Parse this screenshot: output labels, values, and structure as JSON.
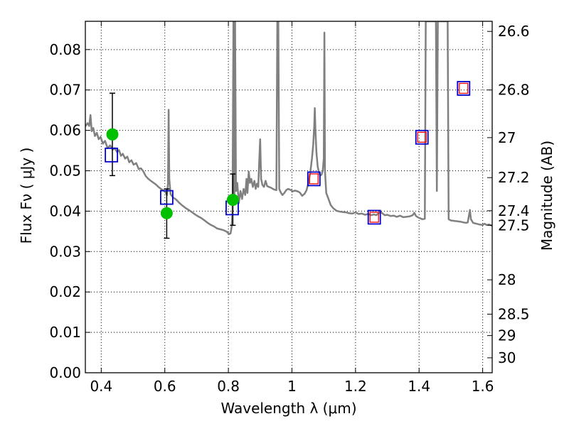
{
  "chart_data": {
    "type": "line",
    "xlabel": "Wavelength  λ (μm)",
    "ylabel": "Flux  Fν  ( μJy )",
    "y2label": "Magnitude (AB)",
    "xlim": [
      0.35,
      1.63
    ],
    "ylim": [
      0.0,
      0.087
    ],
    "grid": true,
    "legend": "none",
    "x_ticks": [
      {
        "value": 0.4,
        "label": "0.4"
      },
      {
        "value": 0.6,
        "label": "0.6"
      },
      {
        "value": 0.8,
        "label": "0.8"
      },
      {
        "value": 1.0,
        "label": "1"
      },
      {
        "value": 1.2,
        "label": "1.2"
      },
      {
        "value": 1.4,
        "label": "1.4"
      },
      {
        "value": 1.6,
        "label": "1.6"
      }
    ],
    "y_ticks": [
      {
        "value": 0.0,
        "label": "0.00"
      },
      {
        "value": 0.01,
        "label": "0.01"
      },
      {
        "value": 0.02,
        "label": "0.02"
      },
      {
        "value": 0.03,
        "label": "0.03"
      },
      {
        "value": 0.04,
        "label": "0.04"
      },
      {
        "value": 0.05,
        "label": "0.05"
      },
      {
        "value": 0.06,
        "label": "0.06"
      },
      {
        "value": 0.07,
        "label": "0.07"
      },
      {
        "value": 0.08,
        "label": "0.08"
      }
    ],
    "y2_ticks": [
      {
        "flux": 0.0845,
        "label": "26.6"
      },
      {
        "flux": 0.07,
        "label": "26.8"
      },
      {
        "flux": 0.0582,
        "label": "27"
      },
      {
        "flux": 0.0483,
        "label": "27.2"
      },
      {
        "flux": 0.0401,
        "label": "27.4"
      },
      {
        "flux": 0.0365,
        "label": "27.5"
      },
      {
        "flux": 0.023,
        "label": "28"
      },
      {
        "flux": 0.0145,
        "label": "28.5"
      },
      {
        "flux": 0.0092,
        "label": "29"
      },
      {
        "flux": 0.0037,
        "label": "30"
      }
    ],
    "series": [
      {
        "kind": "sed-model",
        "color": "#808080",
        "points": [
          [
            0.35,
            0.061
          ],
          [
            0.357,
            0.0618
          ],
          [
            0.362,
            0.0611
          ],
          [
            0.366,
            0.0638
          ],
          [
            0.37,
            0.0598
          ],
          [
            0.375,
            0.0606
          ],
          [
            0.38,
            0.0586
          ],
          [
            0.386,
            0.0594
          ],
          [
            0.392,
            0.0578
          ],
          [
            0.398,
            0.0584
          ],
          [
            0.405,
            0.0567
          ],
          [
            0.412,
            0.0574
          ],
          [
            0.42,
            0.0556
          ],
          [
            0.428,
            0.0563
          ],
          [
            0.436,
            0.0552
          ],
          [
            0.442,
            0.0556
          ],
          [
            0.45,
            0.0546
          ],
          [
            0.456,
            0.0551
          ],
          [
            0.462,
            0.0537
          ],
          [
            0.468,
            0.0542
          ],
          [
            0.475,
            0.053
          ],
          [
            0.482,
            0.0535
          ],
          [
            0.488,
            0.0521
          ],
          [
            0.495,
            0.0526
          ],
          [
            0.502,
            0.0515
          ],
          [
            0.51,
            0.0519
          ],
          [
            0.518,
            0.0504
          ],
          [
            0.525,
            0.0506
          ],
          [
            0.532,
            0.0499
          ],
          [
            0.54,
            0.0487
          ],
          [
            0.548,
            0.048
          ],
          [
            0.556,
            0.0475
          ],
          [
            0.565,
            0.047
          ],
          [
            0.572,
            0.0466
          ],
          [
            0.58,
            0.046
          ],
          [
            0.588,
            0.0455
          ],
          [
            0.596,
            0.0451
          ],
          [
            0.602,
            0.0447
          ],
          [
            0.607,
            0.044
          ],
          [
            0.61,
            0.047
          ],
          [
            0.612,
            0.0651
          ],
          [
            0.614,
            0.048
          ],
          [
            0.618,
            0.0442
          ],
          [
            0.626,
            0.0434
          ],
          [
            0.635,
            0.0429
          ],
          [
            0.645,
            0.0421
          ],
          [
            0.655,
            0.0414
          ],
          [
            0.665,
            0.0408
          ],
          [
            0.675,
            0.0403
          ],
          [
            0.685,
            0.0398
          ],
          [
            0.695,
            0.0392
          ],
          [
            0.705,
            0.0387
          ],
          [
            0.715,
            0.0383
          ],
          [
            0.725,
            0.0377
          ],
          [
            0.735,
            0.0371
          ],
          [
            0.745,
            0.0366
          ],
          [
            0.755,
            0.0362
          ],
          [
            0.765,
            0.0357
          ],
          [
            0.775,
            0.0355
          ],
          [
            0.785,
            0.0353
          ],
          [
            0.795,
            0.0349
          ],
          [
            0.802,
            0.0343
          ],
          [
            0.807,
            0.0345
          ],
          [
            0.81,
            0.036
          ],
          [
            0.813,
            0.04
          ],
          [
            0.816,
            0.087
          ],
          [
            0.819,
            0.042
          ],
          [
            0.821,
            0.087
          ],
          [
            0.824,
            0.045
          ],
          [
            0.828,
            0.047
          ],
          [
            0.833,
            0.042
          ],
          [
            0.838,
            0.045
          ],
          [
            0.843,
            0.043
          ],
          [
            0.848,
            0.0455
          ],
          [
            0.853,
            0.044
          ],
          [
            0.857,
            0.048
          ],
          [
            0.86,
            0.0445
          ],
          [
            0.864,
            0.0498
          ],
          [
            0.868,
            0.047
          ],
          [
            0.872,
            0.048
          ],
          [
            0.877,
            0.046
          ],
          [
            0.882,
            0.0475
          ],
          [
            0.886,
            0.0455
          ],
          [
            0.89,
            0.0468
          ],
          [
            0.894,
            0.046
          ],
          [
            0.897,
            0.052
          ],
          [
            0.9,
            0.0578
          ],
          [
            0.903,
            0.048
          ],
          [
            0.907,
            0.0465
          ],
          [
            0.912,
            0.046
          ],
          [
            0.917,
            0.0475
          ],
          [
            0.922,
            0.0462
          ],
          [
            0.928,
            0.046
          ],
          [
            0.934,
            0.0458
          ],
          [
            0.94,
            0.0455
          ],
          [
            0.946,
            0.0453
          ],
          [
            0.951,
            0.0452
          ],
          [
            0.954,
            0.087
          ],
          [
            0.957,
            0.087
          ],
          [
            0.96,
            0.0455
          ],
          [
            0.965,
            0.0446
          ],
          [
            0.97,
            0.044
          ],
          [
            0.976,
            0.0445
          ],
          [
            0.982,
            0.0452
          ],
          [
            0.988,
            0.0455
          ],
          [
            0.995,
            0.0453
          ],
          [
            1.002,
            0.0449
          ],
          [
            1.01,
            0.0451
          ],
          [
            1.018,
            0.0449
          ],
          [
            1.025,
            0.0446
          ],
          [
            1.032,
            0.0438
          ],
          [
            1.04,
            0.0443
          ],
          [
            1.046,
            0.0452
          ],
          [
            1.052,
            0.047
          ],
          [
            1.058,
            0.0498
          ],
          [
            1.063,
            0.053
          ],
          [
            1.067,
            0.0565
          ],
          [
            1.07,
            0.061
          ],
          [
            1.072,
            0.0655
          ],
          [
            1.074,
            0.06
          ],
          [
            1.077,
            0.0545
          ],
          [
            1.081,
            0.051
          ],
          [
            1.085,
            0.0495
          ],
          [
            1.089,
            0.0488
          ],
          [
            1.093,
            0.049
          ],
          [
            1.097,
            0.05
          ],
          [
            1.1,
            0.053
          ],
          [
            1.102,
            0.0842
          ],
          [
            1.104,
            0.05
          ],
          [
            1.108,
            0.0445
          ],
          [
            1.115,
            0.043
          ],
          [
            1.122,
            0.0415
          ],
          [
            1.13,
            0.0407
          ],
          [
            1.14,
            0.0401
          ],
          [
            1.15,
            0.0399
          ],
          [
            1.16,
            0.0398
          ],
          [
            1.17,
            0.0397
          ],
          [
            1.18,
            0.0395
          ],
          [
            1.19,
            0.0394
          ],
          [
            1.2,
            0.0397
          ],
          [
            1.21,
            0.0393
          ],
          [
            1.22,
            0.0394
          ],
          [
            1.23,
            0.0391
          ],
          [
            1.24,
            0.0393
          ],
          [
            1.25,
            0.039
          ],
          [
            1.258,
            0.0392
          ],
          [
            1.265,
            0.039
          ],
          [
            1.272,
            0.0394
          ],
          [
            1.278,
            0.0399
          ],
          [
            1.284,
            0.0395
          ],
          [
            1.292,
            0.039
          ],
          [
            1.3,
            0.0391
          ],
          [
            1.31,
            0.0388
          ],
          [
            1.32,
            0.0389
          ],
          [
            1.33,
            0.0386
          ],
          [
            1.34,
            0.0389
          ],
          [
            1.35,
            0.0385
          ],
          [
            1.36,
            0.0386
          ],
          [
            1.37,
            0.0387
          ],
          [
            1.38,
            0.039
          ],
          [
            1.385,
            0.0396
          ],
          [
            1.39,
            0.0388
          ],
          [
            1.398,
            0.0384
          ],
          [
            1.405,
            0.0382
          ],
          [
            1.41,
            0.038
          ],
          [
            1.418,
            0.0381
          ],
          [
            1.421,
            0.087
          ],
          [
            1.444,
            0.087
          ],
          [
            1.447,
            0.087
          ],
          [
            1.45,
            0.087
          ],
          [
            1.453,
            0.087
          ],
          [
            1.456,
            0.045
          ],
          [
            1.459,
            0.087
          ],
          [
            1.463,
            0.087
          ],
          [
            1.47,
            0.087
          ],
          [
            1.478,
            0.087
          ],
          [
            1.486,
            0.087
          ],
          [
            1.49,
            0.087
          ],
          [
            1.493,
            0.038
          ],
          [
            1.5,
            0.0377
          ],
          [
            1.51,
            0.0376
          ],
          [
            1.52,
            0.0375
          ],
          [
            1.53,
            0.0374
          ],
          [
            1.54,
            0.0372
          ],
          [
            1.548,
            0.0371
          ],
          [
            1.553,
            0.0372
          ],
          [
            1.557,
            0.039
          ],
          [
            1.56,
            0.0403
          ],
          [
            1.563,
            0.038
          ],
          [
            1.57,
            0.0371
          ],
          [
            1.58,
            0.0369
          ],
          [
            1.59,
            0.0367
          ],
          [
            1.6,
            0.0366
          ],
          [
            1.606,
            0.0369
          ],
          [
            1.612,
            0.0366
          ],
          [
            1.62,
            0.0367
          ],
          [
            1.63,
            0.0364
          ]
        ]
      },
      {
        "kind": "observed-flux",
        "color": "#00c000",
        "points": [
          {
            "x": 0.435,
            "y": 0.059,
            "yerr_low": 0.0488,
            "yerr_high": 0.0692
          },
          {
            "x": 0.606,
            "y": 0.0395,
            "yerr_low": 0.0333,
            "yerr_high": 0.0455
          },
          {
            "x": 0.814,
            "y": 0.0428,
            "yerr_low": 0.0365,
            "yerr_high": 0.0492
          }
        ]
      },
      {
        "kind": "model-flux-blue-squares",
        "color": "#0000cc",
        "points": [
          [
            0.432,
            0.0539
          ],
          [
            0.606,
            0.0434
          ],
          [
            0.812,
            0.0408
          ],
          [
            1.069,
            0.048
          ],
          [
            1.259,
            0.0385
          ],
          [
            1.409,
            0.0583
          ],
          [
            1.54,
            0.0704
          ]
        ]
      },
      {
        "kind": "model-flux-red-squares",
        "color": "#ff0000",
        "points": [
          [
            1.069,
            0.048
          ],
          [
            1.259,
            0.0385
          ],
          [
            1.409,
            0.0583
          ],
          [
            1.54,
            0.0704
          ]
        ]
      }
    ]
  }
}
